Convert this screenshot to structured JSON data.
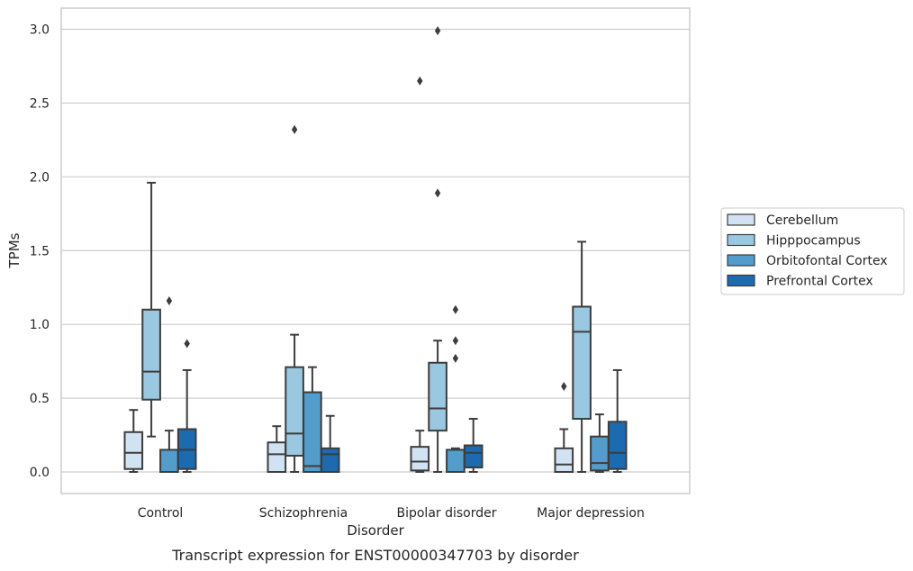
{
  "chart_data": {
    "type": "box",
    "xlabel": "Disorder",
    "ylabel": "TPMs",
    "caption": "Transcript expression for ENST00000347703 by disorder",
    "ylim": [
      -0.15,
      3.15
    ],
    "yticks": [
      "0.0",
      "0.5",
      "1.0",
      "1.5",
      "2.0",
      "2.5",
      "3.0"
    ],
    "grid": "horizontal",
    "legend_position": "right",
    "categories": [
      "Control",
      "Schizophrenia",
      "Bipolar disorder",
      "Major depression"
    ],
    "series": [
      {
        "name": "Cerebellum",
        "color": "#d1e2f2",
        "boxes": [
          {
            "whislo": 0.0,
            "q1": 0.02,
            "med": 0.13,
            "q3": 0.27,
            "whishi": 0.42,
            "fliers": []
          },
          {
            "whislo": 0.0,
            "q1": 0.0,
            "med": 0.12,
            "q3": 0.2,
            "whishi": 0.31,
            "fliers": []
          },
          {
            "whislo": 0.0,
            "q1": 0.01,
            "med": 0.07,
            "q3": 0.17,
            "whishi": 0.28,
            "fliers": [
              2.65
            ]
          },
          {
            "whislo": 0.0,
            "q1": 0.0,
            "med": 0.05,
            "q3": 0.16,
            "whishi": 0.29,
            "fliers": [
              0.58
            ]
          }
        ]
      },
      {
        "name": "Hipppocampus",
        "color": "#9ac8e0",
        "boxes": [
          {
            "whislo": 0.24,
            "q1": 0.49,
            "med": 0.68,
            "q3": 1.1,
            "whishi": 1.96,
            "fliers": []
          },
          {
            "whislo": 0.0,
            "q1": 0.11,
            "med": 0.26,
            "q3": 0.71,
            "whishi": 0.93,
            "fliers": [
              2.32
            ]
          },
          {
            "whislo": 0.0,
            "q1": 0.28,
            "med": 0.43,
            "q3": 0.74,
            "whishi": 0.89,
            "fliers": [
              1.89,
              2.99
            ]
          },
          {
            "whislo": 0.0,
            "q1": 0.36,
            "med": 0.95,
            "q3": 1.12,
            "whishi": 1.56,
            "fliers": []
          }
        ]
      },
      {
        "name": "Orbitofontal Cortex",
        "color": "#529dcc",
        "boxes": [
          {
            "whislo": 0.0,
            "q1": 0.0,
            "med": 0.0,
            "q3": 0.15,
            "whishi": 0.28,
            "fliers": [
              1.16
            ]
          },
          {
            "whislo": 0.0,
            "q1": 0.0,
            "med": 0.04,
            "q3": 0.54,
            "whishi": 0.71,
            "fliers": []
          },
          {
            "whislo": 0.0,
            "q1": 0.0,
            "med": 0.0,
            "q3": 0.15,
            "whishi": 0.16,
            "fliers": [
              0.77,
              0.89,
              1.1
            ]
          },
          {
            "whislo": 0.0,
            "q1": 0.01,
            "med": 0.06,
            "q3": 0.24,
            "whishi": 0.39,
            "fliers": []
          }
        ]
      },
      {
        "name": "Prefrontal Cortex",
        "color": "#1c6aaf",
        "boxes": [
          {
            "whislo": 0.0,
            "q1": 0.02,
            "med": 0.15,
            "q3": 0.29,
            "whishi": 0.69,
            "fliers": [
              0.87
            ]
          },
          {
            "whislo": 0.0,
            "q1": 0.0,
            "med": 0.12,
            "q3": 0.16,
            "whishi": 0.38,
            "fliers": []
          },
          {
            "whislo": 0.0,
            "q1": 0.03,
            "med": 0.13,
            "q3": 0.18,
            "whishi": 0.36,
            "fliers": []
          },
          {
            "whislo": 0.0,
            "q1": 0.02,
            "med": 0.13,
            "q3": 0.34,
            "whishi": 0.69,
            "fliers": []
          }
        ]
      }
    ]
  }
}
